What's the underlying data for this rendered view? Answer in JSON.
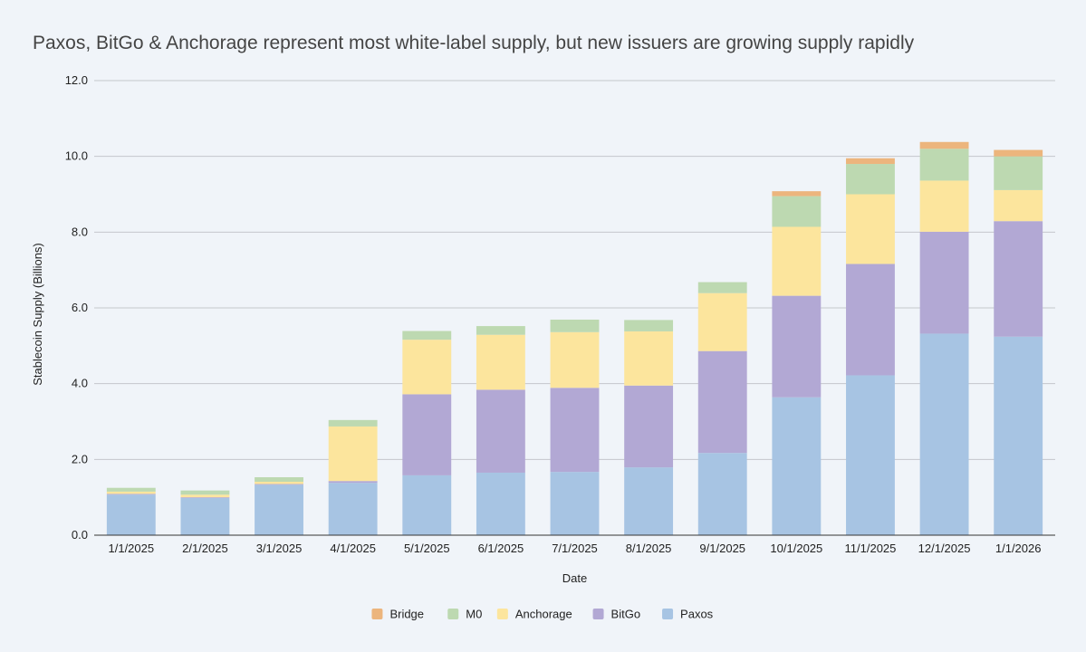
{
  "chart_data": {
    "type": "bar",
    "stacked": true,
    "title": "Paxos, BitGo & Anchorage represent most white-label supply, but new issuers are growing supply rapidly",
    "xlabel": "Date",
    "ylabel": "Stablecoin Supply (Billions)",
    "ylim": [
      0,
      12
    ],
    "yticks": [
      "0.0",
      "2.0",
      "4.0",
      "6.0",
      "8.0",
      "10.0",
      "12.0"
    ],
    "grid": true,
    "legend_position": "bottom",
    "categories": [
      "1/1/2025",
      "2/1/2025",
      "3/1/2025",
      "4/1/2025",
      "5/1/2025",
      "6/1/2025",
      "7/1/2025",
      "8/1/2025",
      "9/1/2025",
      "10/1/2025",
      "11/1/2025",
      "12/1/2025",
      "1/1/2026"
    ],
    "series": [
      {
        "name": "Paxos",
        "color": "#a7c4e3",
        "values": [
          1.07,
          0.98,
          1.33,
          1.38,
          1.58,
          1.65,
          1.67,
          1.79,
          2.17,
          3.64,
          4.22,
          5.32,
          5.24
        ]
      },
      {
        "name": "BitGo",
        "color": "#b2a8d4",
        "values": [
          0.02,
          0.02,
          0.02,
          0.05,
          2.14,
          2.19,
          2.22,
          2.16,
          2.69,
          2.68,
          2.94,
          2.69,
          3.05
        ]
      },
      {
        "name": "Anchorage",
        "color": "#fce59d",
        "values": [
          0.06,
          0.07,
          0.06,
          1.44,
          1.44,
          1.45,
          1.47,
          1.43,
          1.53,
          1.82,
          1.84,
          1.35,
          0.82
        ]
      },
      {
        "name": "M0",
        "color": "#bdd9b1",
        "values": [
          0.1,
          0.11,
          0.12,
          0.17,
          0.23,
          0.23,
          0.33,
          0.3,
          0.29,
          0.81,
          0.8,
          0.84,
          0.89
        ]
      },
      {
        "name": "Bridge",
        "color": "#ecb57d",
        "values": [
          0,
          0,
          0,
          0,
          0,
          0,
          0,
          0,
          0,
          0.13,
          0.15,
          0.18,
          0.17
        ]
      }
    ]
  }
}
